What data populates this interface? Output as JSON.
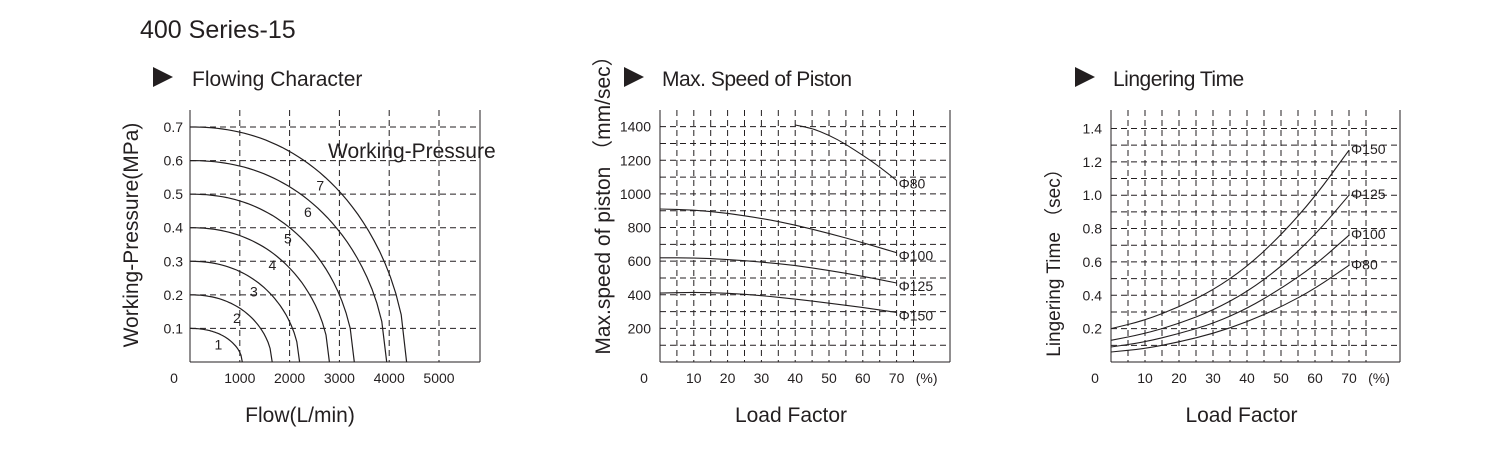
{
  "page_title": "400 Series-15",
  "chart_data": [
    {
      "type": "line",
      "title": "Flowing Character",
      "xlabel": "Flow(L/min)",
      "ylabel": "Working-Pressure(MPa)",
      "xticks": [
        0,
        1000,
        2000,
        3000,
        4000,
        5000
      ],
      "xtick_labels": [
        "0",
        "1000",
        "2000",
        "3000",
        "4000",
        "5000"
      ],
      "yticks": [
        0.1,
        0.2,
        0.3,
        0.4,
        0.5,
        0.6,
        0.7
      ],
      "ytick_labels": [
        "0.1",
        "0.2",
        "0.3",
        "0.4",
        "0.5",
        "0.6",
        "0.7"
      ],
      "xlim": [
        0,
        5500
      ],
      "ylim": [
        0,
        0.72
      ],
      "grid": true,
      "annotation": "Working-Pressure",
      "series": [
        {
          "name": "1",
          "y0": 0.1,
          "x_end": 1050
        },
        {
          "name": "2",
          "y0": 0.2,
          "x_end": 1650
        },
        {
          "name": "3",
          "y0": 0.3,
          "x_end": 2200
        },
        {
          "name": "4",
          "y0": 0.4,
          "x_end": 2800
        },
        {
          "name": "5",
          "y0": 0.5,
          "x_end": 3300
        },
        {
          "name": "6",
          "y0": 0.6,
          "x_end": 3950
        },
        {
          "name": "7",
          "y0": 0.7,
          "x_end": 4350
        }
      ]
    },
    {
      "type": "line",
      "title": "Max. Speed of Piston",
      "xlabel": "Load Factor",
      "ylabel": "Max.speed of piston （mm/sec）",
      "xticks": [
        0,
        10,
        20,
        30,
        40,
        50,
        60,
        70
      ],
      "xtick_labels": [
        "0",
        "10",
        "20",
        "30",
        "40",
        "50",
        "60",
        "70"
      ],
      "x_unit": "(%)",
      "yticks": [
        200,
        400,
        600,
        800,
        1000,
        1200,
        1400
      ],
      "ytick_labels": [
        "200",
        "400",
        "600",
        "800",
        "1000",
        "1200",
        "1400"
      ],
      "xlim": [
        0,
        78
      ],
      "ylim": [
        0,
        1450
      ],
      "grid": true,
      "series": [
        {
          "name": "Φ80",
          "points": [
            [
              40,
              1410
            ],
            [
              45,
              1390
            ],
            [
              50,
              1350
            ],
            [
              55,
              1295
            ],
            [
              60,
              1230
            ],
            [
              65,
              1160
            ],
            [
              70,
              1080
            ]
          ]
        },
        {
          "name": "Φ100",
          "points": [
            [
              0,
              910
            ],
            [
              10,
              905
            ],
            [
              20,
              885
            ],
            [
              30,
              855
            ],
            [
              40,
              815
            ],
            [
              50,
              765
            ],
            [
              60,
              710
            ],
            [
              70,
              650
            ]
          ]
        },
        {
          "name": "Φ125",
          "points": [
            [
              0,
              620
            ],
            [
              10,
              620
            ],
            [
              20,
              610
            ],
            [
              30,
              595
            ],
            [
              40,
              575
            ],
            [
              50,
              545
            ],
            [
              60,
              510
            ],
            [
              70,
              470
            ]
          ]
        },
        {
          "name": "Φ150",
          "points": [
            [
              0,
              410
            ],
            [
              10,
              415
            ],
            [
              20,
              410
            ],
            [
              30,
              395
            ],
            [
              40,
              375
            ],
            [
              50,
              350
            ],
            [
              60,
              325
            ],
            [
              70,
              295
            ]
          ]
        }
      ]
    },
    {
      "type": "line",
      "title": "Lingering Time",
      "xlabel": "Load Factor",
      "ylabel": "Lingering Time （sec）",
      "xticks": [
        0,
        10,
        20,
        30,
        40,
        50,
        60,
        70
      ],
      "xtick_labels": [
        "0",
        "10",
        "20",
        "30",
        "40",
        "50",
        "60",
        "70"
      ],
      "x_unit": "(%)",
      "yticks": [
        0.2,
        0.4,
        0.6,
        0.8,
        1.0,
        1.2,
        1.4
      ],
      "ytick_labels": [
        "0.2",
        "0.4",
        "0.6",
        "0.8",
        "1.0",
        "1.2",
        "1.4"
      ],
      "xlim": [
        0,
        78
      ],
      "ylim": [
        0,
        1.45
      ],
      "grid": true,
      "series": [
        {
          "name": "Φ150",
          "points": [
            [
              0,
              0.2
            ],
            [
              10,
              0.25
            ],
            [
              20,
              0.33
            ],
            [
              30,
              0.43
            ],
            [
              40,
              0.57
            ],
            [
              50,
              0.76
            ],
            [
              60,
              0.99
            ],
            [
              70,
              1.27
            ]
          ]
        },
        {
          "name": "Φ125",
          "points": [
            [
              0,
              0.13
            ],
            [
              10,
              0.17
            ],
            [
              20,
              0.23
            ],
            [
              30,
              0.31
            ],
            [
              40,
              0.42
            ],
            [
              50,
              0.57
            ],
            [
              60,
              0.76
            ],
            [
              70,
              1.0
            ]
          ]
        },
        {
          "name": "Φ100",
          "points": [
            [
              0,
              0.09
            ],
            [
              10,
              0.12
            ],
            [
              20,
              0.17
            ],
            [
              30,
              0.23
            ],
            [
              40,
              0.32
            ],
            [
              50,
              0.44
            ],
            [
              60,
              0.58
            ],
            [
              70,
              0.76
            ]
          ]
        },
        {
          "name": "Φ80",
          "points": [
            [
              0,
              0.06
            ],
            [
              10,
              0.08
            ],
            [
              20,
              0.12
            ],
            [
              30,
              0.17
            ],
            [
              40,
              0.24
            ],
            [
              50,
              0.33
            ],
            [
              60,
              0.44
            ],
            [
              70,
              0.58
            ]
          ]
        }
      ]
    }
  ]
}
